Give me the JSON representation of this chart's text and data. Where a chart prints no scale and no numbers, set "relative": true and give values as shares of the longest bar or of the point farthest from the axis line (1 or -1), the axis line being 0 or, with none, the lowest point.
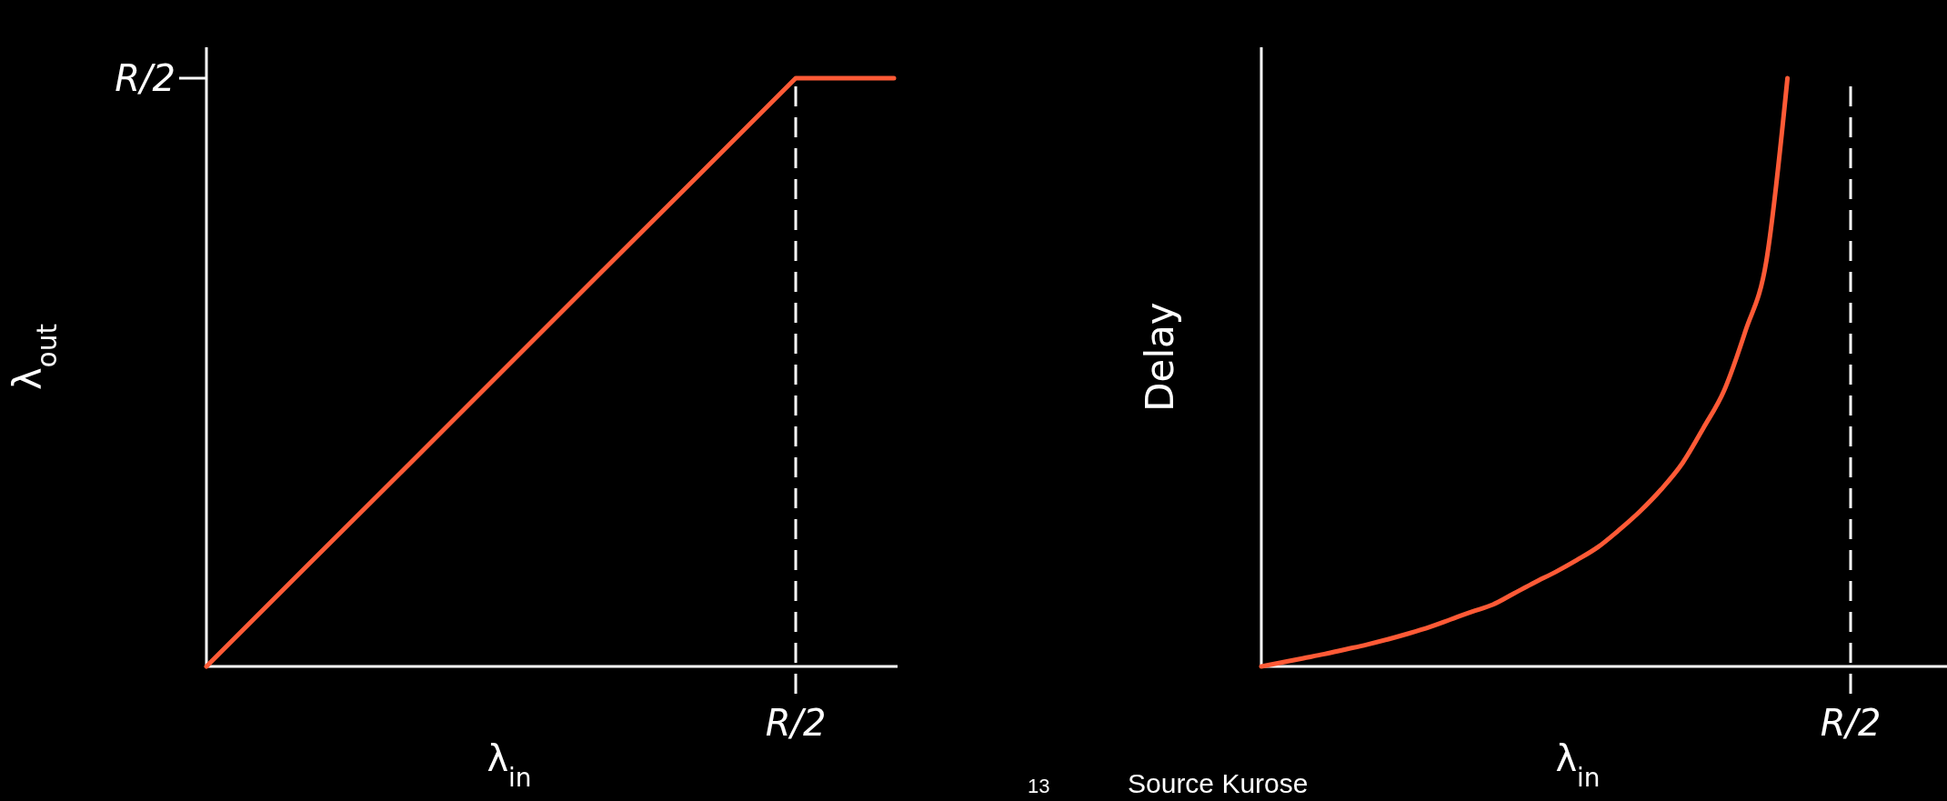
{
  "chart_data": [
    {
      "type": "line",
      "relative": true,
      "categories": [
        null,
        null,
        null,
        null,
        null,
        null,
        null,
        null
      ],
      "series": [
        {
          "color": "#ff5a36",
          "values": [
            0,
            0.167,
            0.333,
            0.5,
            0.667,
            0.833,
            1,
            1
          ]
        }
      ],
      "xlabel": "λ$_{in}$",
      "ylabel": "λ$_{out}$",
      "annotations": [
        "R/2",
        "R/2",
        "13",
        "Source Kurose"
      ]
    },
    {
      "type": "line",
      "relative": true,
      "categories": [
        null,
        null,
        null,
        null,
        null,
        null,
        null,
        null,
        null,
        null,
        null,
        null,
        null,
        null,
        null,
        null,
        null,
        null,
        null,
        null,
        null,
        null,
        null,
        null,
        null,
        null,
        null,
        null,
        null
      ],
      "series": [
        {
          "color": "#ff5a36",
          "values": [
            0,
            0.007,
            0.014,
            0.021,
            0.029,
            0.037,
            0.046,
            0.056,
            0.067,
            0.08,
            0.093,
            0.105,
            0.124,
            0.143,
            0.161,
            0.181,
            0.203,
            0.232,
            0.264,
            0.301,
            0.345,
            0.405,
            0.47,
            0.57,
            0.69,
            1,
            null,
            null,
            null
          ]
        }
      ],
      "xlabel": "λ$_{in}$",
      "ylabel": "Delay",
      "annotations": [
        "R/2"
      ]
    }
  ]
}
